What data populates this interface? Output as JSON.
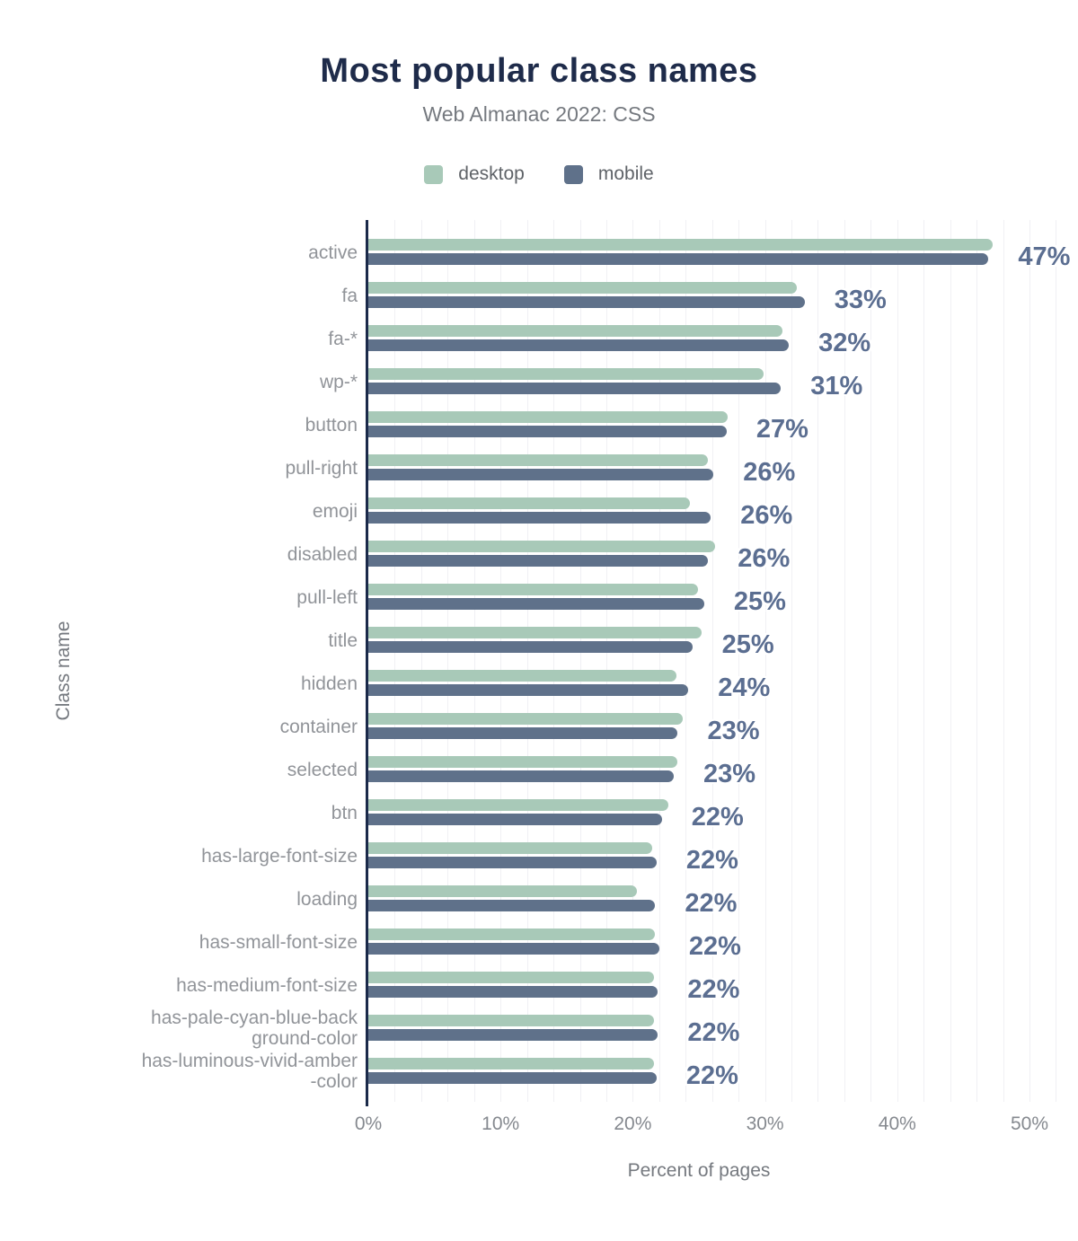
{
  "title": "Most popular class names",
  "subtitle": "Web Almanac 2022: CSS",
  "legend": [
    {
      "label": "desktop",
      "color": "#a8c9b8"
    },
    {
      "label": "mobile",
      "color": "#5f718a"
    }
  ],
  "colors": {
    "title": "#1e2b4a",
    "subtitle": "#75797f",
    "desktop_bar": "#a8c9b8",
    "mobile_bar": "#5f718a",
    "value_label": "#5b6e91",
    "category_label": "#919499",
    "axis_line": "#1b2a4a",
    "gridline": "#f0f0f4"
  },
  "chart_data": {
    "type": "bar",
    "orientation": "horizontal",
    "title": "Most popular class names",
    "subtitle": "Web Almanac 2022: CSS",
    "xlabel": "Percent of pages",
    "ylabel": "Class name",
    "xlim": [
      0,
      52
    ],
    "x_ticks": [
      0,
      10,
      20,
      30,
      40,
      50
    ],
    "x_tick_labels": [
      "0%",
      "10%",
      "20%",
      "30%",
      "40%",
      "50%"
    ],
    "grid": "vertical minor gridlines every 2%",
    "legend_position": "top center",
    "categories": [
      "active",
      "fa",
      "fa-*",
      "wp-*",
      "button",
      "pull-right",
      "emoji",
      "disabled",
      "pull-left",
      "title",
      "hidden",
      "container",
      "selected",
      "btn",
      "has-large-font-size",
      "loading",
      "has-small-font-size",
      "has-medium-font-size",
      "has-pale-cyan-blue-background-color",
      "has-luminous-vivid-amber-color"
    ],
    "display_labels": [
      [
        "active"
      ],
      [
        "fa"
      ],
      [
        "fa-*"
      ],
      [
        "wp-*"
      ],
      [
        "button"
      ],
      [
        "pull-right"
      ],
      [
        "emoji"
      ],
      [
        "disabled"
      ],
      [
        "pull-left"
      ],
      [
        "title"
      ],
      [
        "hidden"
      ],
      [
        "container"
      ],
      [
        "selected"
      ],
      [
        "btn"
      ],
      [
        "has-large-font-size"
      ],
      [
        "loading"
      ],
      [
        "has-small-font-size"
      ],
      [
        "has-medium-font-size"
      ],
      [
        "has-pale-cyan-blue-back",
        "ground-color"
      ],
      [
        "has-luminous-vivid-amber",
        "-color"
      ]
    ],
    "series": [
      {
        "name": "desktop",
        "color": "#a8c9b8",
        "values": [
          47.2,
          32.4,
          31.3,
          29.9,
          27.2,
          25.7,
          24.3,
          26.2,
          24.9,
          25.2,
          23.3,
          23.8,
          23.4,
          22.7,
          21.5,
          20.3,
          21.7,
          21.6,
          21.6,
          21.6
        ]
      },
      {
        "name": "mobile",
        "color": "#5f718a",
        "values": [
          46.9,
          33.0,
          31.8,
          31.2,
          27.1,
          26.1,
          25.9,
          25.7,
          25.4,
          24.5,
          24.2,
          23.4,
          23.1,
          22.2,
          21.8,
          21.7,
          22.0,
          21.9,
          21.9,
          21.8
        ]
      }
    ],
    "value_labels": [
      "47%",
      "33%",
      "32%",
      "31%",
      "27%",
      "26%",
      "26%",
      "26%",
      "25%",
      "25%",
      "24%",
      "23%",
      "23%",
      "22%",
      "22%",
      "22%",
      "22%",
      "22%",
      "22%",
      "22%"
    ],
    "value_labels_series": "mobile"
  }
}
